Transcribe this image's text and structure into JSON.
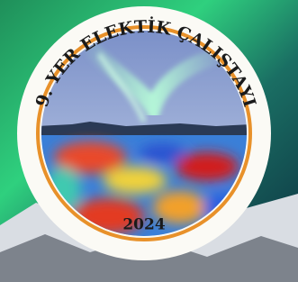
{
  "logo": {
    "arc_text": "9. YER ELEKTİK ÇALIŞTAYI",
    "year": "2024"
  }
}
